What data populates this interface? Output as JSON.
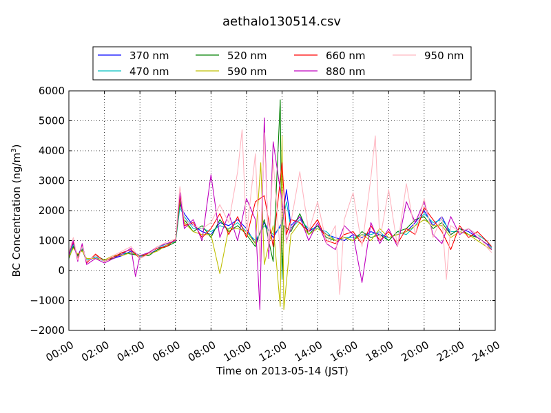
{
  "chart_data": {
    "type": "line",
    "title": "aethalo130514.csv",
    "xlabel": "Time on 2013-05-14 (JST)",
    "ylabel_main": "BC Concentration (ng/m",
    "ylabel_sup": "3",
    "ylabel_close": ")",
    "xlim": [
      0,
      24
    ],
    "ylim": [
      -2000,
      6000
    ],
    "grid": true,
    "legend_position": "top",
    "x_ticks": [
      {
        "value": 0,
        "label": "00:00"
      },
      {
        "value": 2,
        "label": "02:00"
      },
      {
        "value": 4,
        "label": "04:00"
      },
      {
        "value": 6,
        "label": "06:00"
      },
      {
        "value": 8,
        "label": "08:00"
      },
      {
        "value": 10,
        "label": "10:00"
      },
      {
        "value": 12,
        "label": "12:00"
      },
      {
        "value": 14,
        "label": "14:00"
      },
      {
        "value": 16,
        "label": "16:00"
      },
      {
        "value": 18,
        "label": "18:00"
      },
      {
        "value": 20,
        "label": "20:00"
      },
      {
        "value": 22,
        "label": "22:00"
      },
      {
        "value": 24,
        "label": "24:00"
      }
    ],
    "y_ticks": [
      {
        "value": 6000,
        "label": "6000"
      },
      {
        "value": 5000,
        "label": "5000"
      },
      {
        "value": 4000,
        "label": "4000"
      },
      {
        "value": 3000,
        "label": "3000"
      },
      {
        "value": 2000,
        "label": "2000"
      },
      {
        "value": 1000,
        "label": "1000"
      },
      {
        "value": 0,
        "label": "0"
      },
      {
        "value": -1000,
        "label": "−1000"
      },
      {
        "value": -2000,
        "label": "−2000"
      }
    ],
    "series": [
      {
        "name": "370 nm",
        "color": "#0000ff",
        "x": [
          0,
          0.25,
          0.5,
          0.75,
          1,
          1.5,
          2,
          2.5,
          3,
          3.5,
          4,
          4.5,
          5,
          5.5,
          6,
          6.25,
          6.5,
          7,
          7.5,
          8,
          8.5,
          9,
          9.5,
          10,
          10.5,
          11,
          11.5,
          12,
          12.25,
          12.5,
          13,
          13.5,
          14,
          14.5,
          15,
          15.5,
          16,
          16.5,
          17,
          17.5,
          18,
          18.5,
          19,
          19.5,
          20,
          20.5,
          21,
          21.5,
          22,
          22.5,
          23,
          23.5,
          23.8
        ],
        "y": [
          600,
          900,
          500,
          800,
          300,
          450,
          350,
          400,
          500,
          650,
          500,
          550,
          700,
          850,
          1000,
          2200,
          1900,
          1500,
          1300,
          1200,
          1600,
          1500,
          1700,
          1400,
          900,
          1600,
          1100,
          1600,
          2700,
          1500,
          1800,
          1300,
          1500,
          1200,
          1100,
          1000,
          1200,
          1100,
          1300,
          1200,
          1100,
          1200,
          1300,
          1600,
          2000,
          1500,
          1800,
          1200,
          1400,
          1300,
          1100,
          900,
          800
        ]
      },
      {
        "name": "470 nm",
        "color": "#00bfbf",
        "x": [
          0,
          0.25,
          0.5,
          0.75,
          1,
          1.5,
          2,
          2.5,
          3,
          3.5,
          4,
          4.5,
          5,
          5.5,
          6,
          6.25,
          6.5,
          7,
          7.5,
          8,
          8.5,
          9,
          9.5,
          10,
          10.5,
          11,
          11.5,
          12,
          12.25,
          12.5,
          13,
          13.5,
          14,
          14.5,
          15,
          15.5,
          16,
          16.5,
          17,
          17.5,
          18,
          18.5,
          19,
          19.5,
          20,
          20.5,
          21,
          21.5,
          22,
          22.5,
          23,
          23.5,
          23.8
        ],
        "y": [
          500,
          850,
          450,
          750,
          350,
          450,
          300,
          450,
          550,
          600,
          450,
          600,
          750,
          900,
          950,
          2100,
          1800,
          1400,
          1400,
          1300,
          1500,
          1400,
          1600,
          1300,
          1000,
          1500,
          1200,
          1500,
          2300,
          1400,
          1700,
          1400,
          1400,
          1300,
          1000,
          1100,
          1100,
          1200,
          1200,
          1300,
          1000,
          1300,
          1200,
          1500,
          1900,
          1600,
          1700,
          1300,
          1300,
          1400,
          1200,
          1000,
          750
        ]
      },
      {
        "name": "520 nm",
        "color": "#008000",
        "x": [
          0,
          0.25,
          0.5,
          0.75,
          1,
          1.5,
          2,
          2.5,
          3,
          3.5,
          4,
          4.5,
          5,
          5.5,
          6,
          6.25,
          6.5,
          7,
          7.5,
          8,
          8.5,
          9,
          9.5,
          10,
          10.5,
          11,
          11.5,
          11.9,
          12,
          12.1,
          12.5,
          13,
          13.5,
          14,
          14.5,
          15,
          15.5,
          16,
          16.5,
          17,
          17.5,
          18,
          18.5,
          19,
          19.5,
          20,
          20.5,
          21,
          21.5,
          22,
          22.5,
          23,
          23.5,
          23.8
        ],
        "y": [
          400,
          800,
          500,
          700,
          300,
          500,
          350,
          400,
          600,
          550,
          500,
          500,
          700,
          800,
          950,
          2300,
          1700,
          1300,
          1500,
          1100,
          1700,
          1300,
          1500,
          1200,
          800,
          1700,
          300,
          5700,
          -300,
          1500,
          1300,
          1900,
          1200,
          1500,
          1100,
          1000,
          1100,
          1000,
          1300,
          1100,
          1200,
          1000,
          1300,
          1400,
          1700,
          1800,
          1400,
          1600,
          1200,
          1400,
          1200,
          1100,
          900,
          700
        ]
      },
      {
        "name": "590 nm",
        "color": "#bfbf00",
        "x": [
          0,
          0.25,
          0.5,
          0.75,
          1,
          1.5,
          2,
          2.5,
          3,
          3.5,
          4,
          4.5,
          5,
          5.5,
          6,
          6.25,
          6.5,
          7,
          7.5,
          8,
          8.5,
          9,
          9.5,
          10,
          10.5,
          10.8,
          11,
          11.5,
          11.9,
          12,
          12.1,
          12.5,
          13,
          13.5,
          14,
          14.5,
          15,
          15.5,
          16,
          16.5,
          17,
          17.5,
          18,
          18.5,
          19,
          19.5,
          20,
          20.5,
          21,
          21.5,
          22,
          22.5,
          23,
          23.5,
          23.8
        ],
        "y": [
          450,
          750,
          550,
          650,
          400,
          400,
          350,
          500,
          500,
          600,
          500,
          550,
          650,
          850,
          1000,
          2400,
          1600,
          1300,
          1200,
          1200,
          -100,
          1400,
          1400,
          1300,
          900,
          3600,
          200,
          1500,
          -1200,
          4500,
          -1300,
          1200,
          1600,
          1200,
          1400,
          1200,
          1000,
          1100,
          1000,
          1200,
          1000,
          1400,
          1100,
          1200,
          1300,
          1500,
          1700,
          1500,
          1500,
          1100,
          1300,
          1200,
          1000,
          800,
          700
        ]
      },
      {
        "name": "660 nm",
        "color": "#ff0000",
        "x": [
          0,
          0.25,
          0.5,
          0.75,
          1,
          1.5,
          2,
          2.5,
          3,
          3.5,
          4,
          4.5,
          5,
          5.5,
          6,
          6.25,
          6.5,
          7,
          7.5,
          8,
          8.5,
          9,
          9.5,
          10,
          10.5,
          11,
          11.5,
          12,
          12.25,
          12.5,
          13,
          13.5,
          14,
          14.5,
          15,
          15.5,
          16,
          16.5,
          17,
          17.5,
          18,
          18.5,
          19,
          19.5,
          20,
          20.5,
          21,
          21.5,
          22,
          22.5,
          23,
          23.5,
          23.8
        ],
        "y": [
          550,
          950,
          400,
          850,
          250,
          550,
          300,
          450,
          600,
          700,
          400,
          600,
          750,
          800,
          1050,
          2500,
          1500,
          1600,
          1100,
          1400,
          1900,
          1200,
          1800,
          1100,
          2300,
          2500,
          800,
          3600,
          1200,
          1700,
          1600,
          1300,
          1700,
          1000,
          900,
          1200,
          1300,
          900,
          1500,
          1000,
          1300,
          900,
          1400,
          1200,
          2100,
          1700,
          1300,
          700,
          1500,
          1100,
          1300,
          1000,
          800
        ]
      },
      {
        "name": "880 nm",
        "color": "#bf00bf",
        "x": [
          0,
          0.25,
          0.5,
          0.75,
          1,
          1.5,
          2,
          2.5,
          3,
          3.5,
          3.75,
          4,
          4.5,
          5,
          5.5,
          6,
          6.25,
          6.5,
          7,
          7.5,
          8,
          8.5,
          9,
          9.5,
          10,
          10.5,
          10.75,
          11,
          11.25,
          11.5,
          12,
          12.25,
          12.5,
          13,
          13.5,
          14,
          14.5,
          15,
          15.5,
          16,
          16.5,
          17,
          17.5,
          18,
          18.5,
          19,
          19.5,
          20,
          20.5,
          21,
          21.5,
          22,
          22.5,
          23,
          23.5,
          23.8
        ],
        "y": [
          500,
          1000,
          300,
          900,
          200,
          400,
          250,
          400,
          550,
          750,
          -200,
          500,
          600,
          800,
          900,
          1000,
          2600,
          1400,
          1700,
          1000,
          3200,
          1100,
          1900,
          1000,
          2400,
          1700,
          -1300,
          5100,
          400,
          4300,
          2300,
          1000,
          1400,
          1800,
          1000,
          1600,
          900,
          700,
          1500,
          1200,
          -400,
          1600,
          900,
          1400,
          800,
          2300,
          1600,
          2300,
          1200,
          900,
          1800,
          1200,
          1400,
          1100,
          900,
          700
        ]
      },
      {
        "name": "950 nm",
        "color": "#ffb6c1",
        "x": [
          0,
          0.25,
          0.5,
          0.75,
          1,
          1.5,
          2,
          2.5,
          3,
          3.5,
          4,
          4.5,
          5,
          5.5,
          6,
          6.25,
          6.5,
          7,
          7.5,
          8,
          8.5,
          9,
          9.5,
          9.75,
          10,
          10.5,
          10.75,
          11,
          11.25,
          11.5,
          11.9,
          12,
          12.25,
          12.5,
          13,
          13.5,
          14,
          14.5,
          15,
          15.25,
          15.5,
          16,
          16.5,
          17,
          17.25,
          17.5,
          18,
          18.5,
          19,
          19.5,
          20,
          20.5,
          21,
          21.25,
          21.5,
          22,
          22.5,
          23,
          23.5,
          23.8
        ],
        "y": [
          600,
          1100,
          350,
          800,
          300,
          500,
          300,
          500,
          650,
          800,
          400,
          550,
          800,
          950,
          1050,
          2800,
          1700,
          1500,
          1400,
          1600,
          2200,
          1600,
          3300,
          4700,
          1200,
          3900,
          300,
          4600,
          700,
          3700,
          600,
          2600,
          900,
          1600,
          3300,
          1300,
          2300,
          900,
          1500,
          -800,
          1700,
          2600,
          800,
          3100,
          4500,
          1000,
          2700,
          800,
          2900,
          1200,
          2400,
          1100,
          1800,
          -300,
          1500,
          1300,
          1400,
          1200,
          800,
          600
        ]
      }
    ]
  }
}
